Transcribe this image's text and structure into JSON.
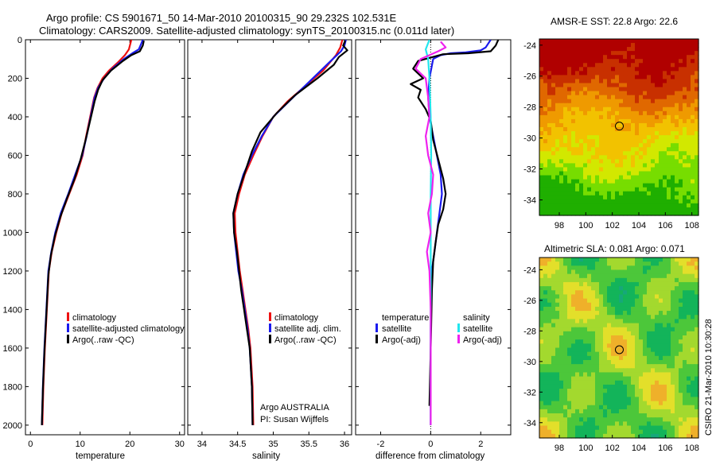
{
  "title": {
    "line1": "Argo profile: CS 5901671_50 14-Mar-2010 20100315_90 29.232S 102.531E",
    "line2": "Climatology: CARS2009. Satellite-adjusted climatology: synTS_20100315.nc (0.011d later)"
  },
  "colors": {
    "climatology": "#ee1111",
    "satellite": "#1a1aee",
    "argo": "#000000",
    "satellite_sal": "#22e6ee",
    "argo_sal": "#ee22ee"
  },
  "chart_data": [
    {
      "type": "line",
      "id": "temperature",
      "xlabel": "temperature",
      "xlim": [
        -1,
        31
      ],
      "ylim": [
        0,
        2050
      ],
      "y_reversed": true,
      "xticks": [
        "0",
        "10",
        "20",
        "30"
      ],
      "yticks": [
        "0",
        "200",
        "400",
        "600",
        "800",
        "1000",
        "1200",
        "1400",
        "1600",
        "1800",
        "2000"
      ],
      "legend": [
        "climatology",
        "satellite-adjusted climatology",
        "Argo(..raw -QC)"
      ],
      "series": [
        {
          "name": "climatology",
          "color_key": "climatology",
          "points": [
            [
              20.3,
              0
            ],
            [
              20.1,
              20
            ],
            [
              19.8,
              50
            ],
            [
              19.0,
              80
            ],
            [
              17.5,
              120
            ],
            [
              15.8,
              160
            ],
            [
              14.5,
              200
            ],
            [
              13.5,
              250
            ],
            [
              12.8,
              300
            ],
            [
              12.0,
              400
            ],
            [
              11.2,
              500
            ],
            [
              10.5,
              600
            ],
            [
              9.3,
              700
            ],
            [
              7.8,
              800
            ],
            [
              6.3,
              900
            ],
            [
              5.2,
              1000
            ],
            [
              4.3,
              1100
            ],
            [
              3.7,
              1200
            ],
            [
              3.3,
              1400
            ],
            [
              2.9,
              1600
            ],
            [
              2.6,
              1800
            ],
            [
              2.4,
              2000
            ]
          ]
        },
        {
          "name": "satellite-adjusted climatology",
          "color_key": "satellite",
          "points": [
            [
              22.6,
              0
            ],
            [
              22.3,
              20
            ],
            [
              21.8,
              50
            ],
            [
              20.5,
              70
            ],
            [
              18.8,
              100
            ],
            [
              16.5,
              150
            ],
            [
              14.8,
              200
            ],
            [
              13.6,
              250
            ],
            [
              12.9,
              300
            ],
            [
              12.1,
              400
            ],
            [
              11.3,
              500
            ],
            [
              10.4,
              600
            ],
            [
              9.0,
              700
            ],
            [
              7.6,
              800
            ],
            [
              6.1,
              900
            ],
            [
              5.0,
              1000
            ],
            [
              4.2,
              1100
            ],
            [
              3.6,
              1200
            ],
            [
              3.2,
              1400
            ],
            [
              2.8,
              1600
            ],
            [
              2.5,
              1800
            ],
            [
              2.3,
              2000
            ]
          ]
        },
        {
          "name": "Argo(..raw -QC)",
          "color_key": "argo",
          "points": [
            [
              22.8,
              5
            ],
            [
              22.6,
              30
            ],
            [
              22.0,
              60
            ],
            [
              20.3,
              80
            ],
            [
              18.6,
              110
            ],
            [
              16.2,
              160
            ],
            [
              14.5,
              210
            ],
            [
              13.6,
              260
            ],
            [
              12.9,
              320
            ],
            [
              12.0,
              420
            ],
            [
              11.1,
              520
            ],
            [
              10.1,
              620
            ],
            [
              8.9,
              720
            ],
            [
              7.4,
              820
            ],
            [
              6.0,
              920
            ],
            [
              4.9,
              1020
            ],
            [
              4.1,
              1120
            ],
            [
              3.6,
              1220
            ],
            [
              3.2,
              1420
            ],
            [
              2.8,
              1620
            ],
            [
              2.5,
              1820
            ],
            [
              2.3,
              2000
            ]
          ]
        }
      ]
    },
    {
      "type": "line",
      "id": "salinity",
      "xlabel": "salinity",
      "xlim": [
        33.8,
        36.1
      ],
      "ylim": [
        0,
        2050
      ],
      "y_reversed": true,
      "xticks": [
        "34",
        "34.5",
        "35",
        "35.5",
        "36"
      ],
      "legend": [
        "climatology",
        "satellite adj. clim.",
        "Argo(..raw -QC)"
      ],
      "annotation": [
        "Argo AUSTRALIA",
        "PI: Susan Wijffels"
      ],
      "series": [
        {
          "name": "climatology",
          "color_key": "climatology",
          "points": [
            [
              35.97,
              0
            ],
            [
              35.94,
              40
            ],
            [
              35.88,
              80
            ],
            [
              35.7,
              160
            ],
            [
              35.45,
              240
            ],
            [
              35.2,
              320
            ],
            [
              35.0,
              400
            ],
            [
              34.85,
              500
            ],
            [
              34.72,
              600
            ],
            [
              34.6,
              700
            ],
            [
              34.52,
              800
            ],
            [
              34.46,
              900
            ],
            [
              34.47,
              1000
            ],
            [
              34.5,
              1100
            ],
            [
              34.53,
              1200
            ],
            [
              34.57,
              1300
            ],
            [
              34.61,
              1400
            ],
            [
              34.65,
              1500
            ],
            [
              34.68,
              1600
            ],
            [
              34.71,
              1800
            ],
            [
              34.72,
              2000
            ]
          ]
        },
        {
          "name": "satellite adj. clim.",
          "color_key": "satellite",
          "points": [
            [
              36.02,
              0
            ],
            [
              36.0,
              30
            ],
            [
              35.95,
              60
            ],
            [
              35.78,
              120
            ],
            [
              35.5,
              220
            ],
            [
              35.22,
              320
            ],
            [
              35.0,
              400
            ],
            [
              34.84,
              500
            ],
            [
              34.7,
              600
            ],
            [
              34.58,
              700
            ],
            [
              34.5,
              800
            ],
            [
              34.44,
              900
            ],
            [
              34.45,
              1000
            ],
            [
              34.48,
              1100
            ],
            [
              34.51,
              1200
            ],
            [
              34.56,
              1300
            ],
            [
              34.6,
              1400
            ],
            [
              34.64,
              1500
            ],
            [
              34.67,
              1600
            ],
            [
              34.7,
              1800
            ],
            [
              34.71,
              2000
            ]
          ]
        },
        {
          "name": "Argo(..raw -QC)",
          "color_key": "argo",
          "points": [
            [
              36.01,
              5
            ],
            [
              35.98,
              30
            ],
            [
              36.04,
              55
            ],
            [
              35.92,
              90
            ],
            [
              35.85,
              130
            ],
            [
              35.62,
              200
            ],
            [
              35.3,
              290
            ],
            [
              35.05,
              380
            ],
            [
              34.82,
              480
            ],
            [
              34.7,
              580
            ],
            [
              34.6,
              690
            ],
            [
              34.5,
              800
            ],
            [
              34.44,
              900
            ],
            [
              34.45,
              1000
            ],
            [
              34.49,
              1100
            ],
            [
              34.52,
              1200
            ],
            [
              34.55,
              1300
            ],
            [
              34.59,
              1400
            ],
            [
              34.63,
              1500
            ],
            [
              34.67,
              1600
            ],
            [
              34.7,
              1800
            ],
            [
              34.71,
              2000
            ]
          ]
        }
      ]
    },
    {
      "type": "line",
      "id": "difference",
      "xlabel": "difference from climatology",
      "xlim": [
        -3,
        3.2
      ],
      "ylim": [
        0,
        2050
      ],
      "y_reversed": true,
      "xticks": [
        "-2",
        "0",
        "2"
      ],
      "legend_left": [
        "temperature",
        "satellite",
        "Argo(-adj)"
      ],
      "legend_right": [
        "salinity",
        "satellite",
        "Argo(-adj)"
      ],
      "series": [
        {
          "name": "temperature satellite",
          "color_key": "satellite",
          "points": [
            [
              2.4,
              0
            ],
            [
              2.3,
              20
            ],
            [
              2.2,
              40
            ],
            [
              2.0,
              55
            ],
            [
              1.4,
              65
            ],
            [
              0.8,
              70
            ],
            [
              0.4,
              80
            ],
            [
              0.1,
              100
            ],
            [
              -0.05,
              200
            ],
            [
              -0.1,
              300
            ],
            [
              -0.05,
              400
            ],
            [
              0.1,
              500
            ],
            [
              0.25,
              600
            ],
            [
              0.4,
              700
            ],
            [
              0.45,
              800
            ],
            [
              0.35,
              900
            ],
            [
              0.25,
              1000
            ],
            [
              0.15,
              1100
            ],
            [
              0.05,
              1200
            ],
            [
              0.0,
              1500
            ],
            [
              0.0,
              2000
            ]
          ]
        },
        {
          "name": "temperature Argo(-adj)",
          "color_key": "argo",
          "points": [
            [
              2.7,
              0
            ],
            [
              2.6,
              30
            ],
            [
              2.4,
              60
            ],
            [
              1.5,
              70
            ],
            [
              0.5,
              75
            ],
            [
              -0.5,
              110
            ],
            [
              -0.7,
              150
            ],
            [
              -0.3,
              200
            ],
            [
              -0.8,
              230
            ],
            [
              -0.4,
              260
            ],
            [
              -0.5,
              300
            ],
            [
              -0.2,
              360
            ],
            [
              0.0,
              420
            ],
            [
              0.1,
              520
            ],
            [
              0.3,
              620
            ],
            [
              0.5,
              720
            ],
            [
              0.6,
              800
            ],
            [
              0.5,
              880
            ],
            [
              0.3,
              960
            ],
            [
              0.2,
              1050
            ],
            [
              0.1,
              1150
            ],
            [
              0.05,
              1300
            ],
            [
              0.0,
              1600
            ],
            [
              -0.05,
              1900
            ]
          ]
        },
        {
          "name": "salinity satellite",
          "color_key": "satellite_sal",
          "points": [
            [
              -0.05,
              0
            ],
            [
              -0.2,
              50
            ],
            [
              -0.1,
              100
            ],
            [
              -0.05,
              200
            ],
            [
              0.0,
              400
            ],
            [
              0.02,
              600
            ],
            [
              0.0,
              800
            ],
            [
              0.0,
              1200
            ],
            [
              0.0,
              1600
            ],
            [
              0.0,
              2000
            ]
          ]
        },
        {
          "name": "salinity Argo(-adj)",
          "color_key": "argo_sal",
          "points": [
            [
              0.4,
              10
            ],
            [
              0.6,
              40
            ],
            [
              0.3,
              60
            ],
            [
              -0.4,
              100
            ],
            [
              -0.6,
              150
            ],
            [
              -0.2,
              200
            ],
            [
              -0.1,
              300
            ],
            [
              -0.05,
              400
            ],
            [
              -0.2,
              500
            ],
            [
              -0.1,
              600
            ],
            [
              0.1,
              700
            ],
            [
              0.05,
              800
            ],
            [
              -0.1,
              900
            ],
            [
              0.0,
              1000
            ],
            [
              -0.15,
              1100
            ],
            [
              -0.05,
              1200
            ],
            [
              0.0,
              1400
            ],
            [
              0.0,
              1700
            ],
            [
              0.0,
              2000
            ]
          ]
        }
      ]
    },
    {
      "type": "heatmap",
      "id": "sst_map",
      "title": "AMSR-E SST: 22.8 Argo: 22.6",
      "xlim": [
        96.5,
        108.5
      ],
      "ylim": [
        -35,
        -23.6
      ],
      "xticks": [
        "98",
        "100",
        "102",
        "104",
        "106",
        "108"
      ],
      "yticks": [
        "-24",
        "-26",
        "-28",
        "-30",
        "-32",
        "-34"
      ],
      "marker": [
        102.53,
        -29.23
      ],
      "color_scale": [
        "#1faf00",
        "#77dd00",
        "#d2e800",
        "#f2c200",
        "#ef9a00",
        "#e06800",
        "#c83000",
        "#b00000"
      ]
    },
    {
      "type": "heatmap",
      "id": "sla_map",
      "title": "Altimetric SLA: 0.081 Argo: 0.071",
      "xlim": [
        96.5,
        108.5
      ],
      "ylim": [
        -35,
        -23.2
      ],
      "xticks": [
        "98",
        "100",
        "102",
        "104",
        "106",
        "108"
      ],
      "yticks": [
        "-24",
        "-26",
        "-28",
        "-30",
        "-32",
        "-34"
      ],
      "marker": [
        102.53,
        -29.23
      ],
      "color_scale": [
        "#16a87a",
        "#13b45a",
        "#4cc73a",
        "#a3d92e",
        "#e3df2a",
        "#efb02a"
      ]
    }
  ],
  "footer": "CSIRO 21-Mar-2010 10:30:28"
}
